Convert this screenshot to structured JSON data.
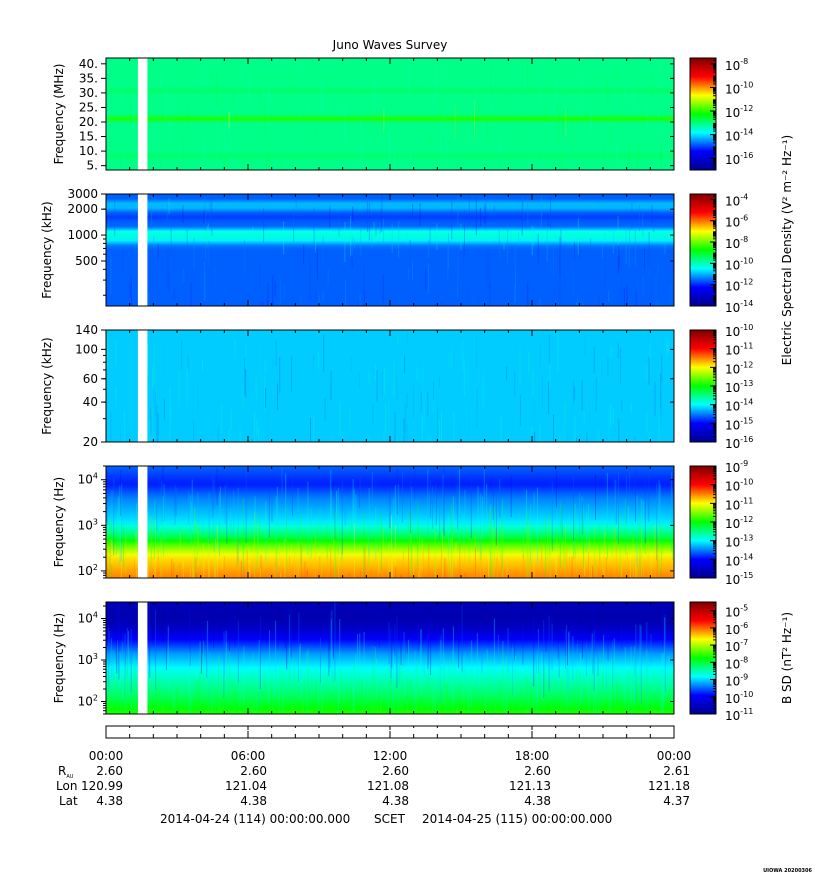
{
  "title": "Juno Waves Survey",
  "footer_stamp": "UIOWA 20200306",
  "footer": {
    "start": "2014-04-24 (114) 00:00:00.000",
    "scet": "SCET",
    "end": "2014-04-25 (115) 00:00:00.000"
  },
  "ephemeris": {
    "labels": {
      "r": "R",
      "r_sub": "AU",
      "lon": "Lon",
      "lat": "Lat"
    },
    "times": [
      "00:00",
      "06:00",
      "12:00",
      "18:00",
      "00:00"
    ],
    "r_au": [
      "2.60",
      "2.60",
      "2.60",
      "2.60",
      "2.61"
    ],
    "lon": [
      "120.99",
      "121.04",
      "121.08",
      "121.13",
      "121.18"
    ],
    "lat": [
      "4.38",
      "4.38",
      "4.38",
      "4.38",
      "4.37"
    ]
  },
  "colorbar_labels": {
    "electric": "Electric Spectral Density (V² m⁻² Hz⁻¹)",
    "magnetic": "B SD (nT² Hz⁻¹)"
  },
  "colors": {
    "jet": [
      "#00008f",
      "#0000ff",
      "#00ffff",
      "#00ff00",
      "#ffff00",
      "#ff0000",
      "#800000"
    ],
    "data_gap": "#ffffff"
  },
  "chart_data": [
    {
      "type": "heatmap",
      "ylabel": "Frequency (MHz)",
      "yscale": "linear",
      "ylim": [
        3.5,
        42
      ],
      "yticks": [
        5,
        10,
        15,
        20,
        25,
        30,
        35,
        40
      ],
      "ytick_labels": [
        "5.",
        "10.",
        "15.",
        "20.",
        "25.",
        "30.",
        "35.",
        "40."
      ],
      "colorbar": {
        "scale": "log",
        "range_exp": [
          -17,
          -7.5
        ],
        "ticks_exp": [
          -16,
          -14,
          -12,
          -10,
          -8
        ]
      },
      "background_level": -13.1,
      "bands": [
        {
          "y": 20.5,
          "half_width": 0.9,
          "level": -11.0
        },
        {
          "y": 7.8,
          "half_width": 0.6,
          "level": -12.4
        },
        {
          "y": 30.5,
          "half_width": 0.5,
          "level": -12.8
        },
        {
          "y": 35.2,
          "half_width": 0.4,
          "level": -12.8
        }
      ],
      "gap_hours": [
        1.35,
        1.75
      ]
    },
    {
      "type": "heatmap",
      "ylabel": "Frequency (kHz)",
      "yscale": "log",
      "ylim": [
        150,
        3000
      ],
      "yticks": [
        500,
        1000,
        2000,
        3000
      ],
      "ytick_labels": [
        "500",
        "1000",
        "2000",
        "3000"
      ],
      "colorbar": {
        "scale": "log",
        "range_exp": [
          -14,
          -3.5
        ],
        "ticks_exp": [
          -14,
          -12,
          -10,
          -8,
          -6,
          -4
        ]
      },
      "background_level": -11.6,
      "bands": [
        {
          "y": 1000,
          "half_width": 260,
          "level": -10.2
        },
        {
          "y": 2200,
          "half_width": 220,
          "level": -10.6
        },
        {
          "y": 1700,
          "half_width": 120,
          "level": -12.2
        }
      ],
      "gap_hours": [
        1.35,
        1.75
      ]
    },
    {
      "type": "heatmap",
      "ylabel": "Frequency (kHz)",
      "yscale": "log",
      "ylim": [
        20,
        140
      ],
      "yticks": [
        20,
        40,
        60,
        100,
        140
      ],
      "ytick_labels": [
        "20",
        "40",
        "60",
        "100",
        "140"
      ],
      "colorbar": {
        "scale": "log",
        "range_exp": [
          -16,
          -10
        ],
        "ticks_exp": [
          -16,
          -15,
          -14,
          -13,
          -12,
          -11,
          -10
        ]
      },
      "background_level": -14.2,
      "bands": [],
      "gap_hours": [
        1.35,
        1.75
      ]
    },
    {
      "type": "heatmap",
      "ylabel": "Frequency (Hz)",
      "yscale": "log",
      "ylim": [
        70,
        20000
      ],
      "yticks": [
        100,
        1000,
        10000
      ],
      "ytick_labels": [
        "10^2",
        "10^3",
        "10^4"
      ],
      "colorbar": {
        "scale": "log",
        "range_exp": [
          -15,
          -9
        ],
        "ticks_exp": [
          -15,
          -14,
          -13,
          -12,
          -11,
          -10,
          -9
        ]
      },
      "profile": [
        {
          "f": 70,
          "level": -10.5
        },
        {
          "f": 200,
          "level": -10.9
        },
        {
          "f": 350,
          "level": -11.6
        },
        {
          "f": 600,
          "level": -12.4
        },
        {
          "f": 1200,
          "level": -13.1
        },
        {
          "f": 4000,
          "level": -13.5
        },
        {
          "f": 8000,
          "level": -13.9
        },
        {
          "f": 20000,
          "level": -13.6
        }
      ],
      "gap_hours": [
        1.35,
        1.75
      ]
    },
    {
      "type": "heatmap",
      "ylabel": "Frequency (Hz)",
      "yscale": "log",
      "ylim": [
        50,
        25000
      ],
      "yticks": [
        100,
        1000,
        10000
      ],
      "ytick_labels": [
        "10^2",
        "10^3",
        "10^4"
      ],
      "colorbar": {
        "scale": "log",
        "range_exp": [
          -11,
          -4.5
        ],
        "ticks_exp": [
          -11,
          -10,
          -9,
          -8,
          -7,
          -6,
          -5
        ]
      },
      "profile": [
        {
          "f": 50,
          "level": -7.6
        },
        {
          "f": 150,
          "level": -8.2
        },
        {
          "f": 500,
          "level": -8.7
        },
        {
          "f": 1500,
          "level": -9.3
        },
        {
          "f": 3000,
          "level": -9.9
        },
        {
          "f": 6000,
          "level": -10.5
        },
        {
          "f": 10000,
          "level": -10.7
        },
        {
          "f": 25000,
          "level": -10.6
        }
      ],
      "gap_hours": [
        1.35,
        1.75
      ]
    }
  ],
  "time_axis": {
    "range_hours": [
      0,
      24
    ],
    "major_ticks_hours": [
      0,
      6,
      12,
      18,
      24
    ],
    "minor_step_hours": 1
  }
}
